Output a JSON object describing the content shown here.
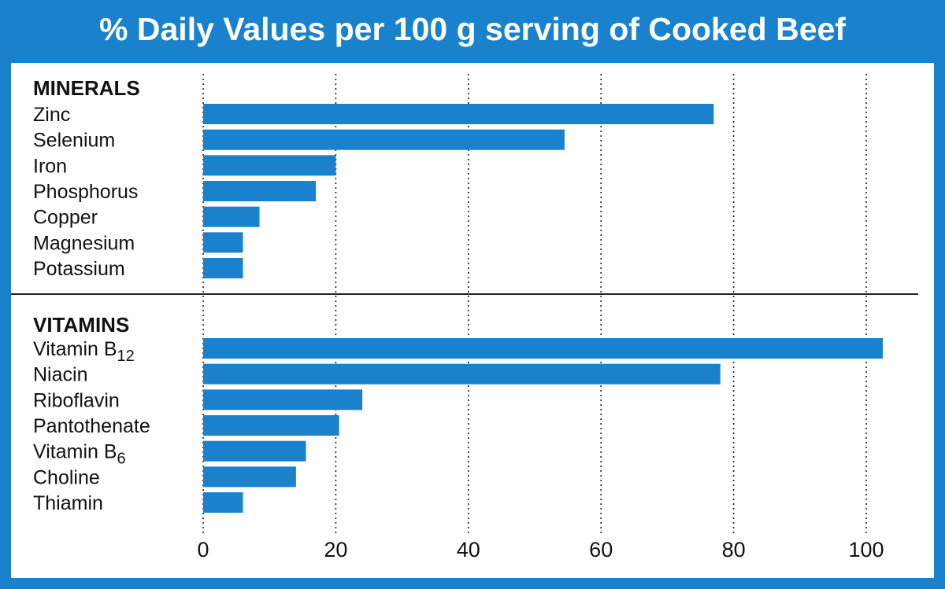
{
  "chart_data": {
    "type": "bar",
    "title": "% Daily Values per 100 g serving of Cooked Beef",
    "xlim": [
      0,
      100
    ],
    "x_ticks": [
      "0",
      "20",
      "40",
      "60",
      "80",
      "100"
    ],
    "grid": "vertical dotted",
    "bar_color": "#1a82cc",
    "groups": [
      {
        "heading": "MINERALS",
        "categories": [
          {
            "label": "Zinc",
            "sub": "",
            "value": 77
          },
          {
            "label": "Selenium",
            "sub": "",
            "value": 54.5
          },
          {
            "label": "Iron",
            "sub": "",
            "value": 20
          },
          {
            "label": "Phosphorus",
            "sub": "",
            "value": 17
          },
          {
            "label": "Copper",
            "sub": "",
            "value": 8.5
          },
          {
            "label": "Magnesium",
            "sub": "",
            "value": 6
          },
          {
            "label": "Potassium",
            "sub": "",
            "value": 6
          }
        ]
      },
      {
        "heading": "VITAMINS",
        "categories": [
          {
            "label": "Vitamin B",
            "sub": "12",
            "value": 102.5
          },
          {
            "label": "Niacin",
            "sub": "",
            "value": 78
          },
          {
            "label": "Riboflavin",
            "sub": "",
            "value": 24
          },
          {
            "label": "Pantothenate",
            "sub": "",
            "value": 20.5
          },
          {
            "label": "Vitamin B",
            "sub": "6",
            "value": 15.5
          },
          {
            "label": "Choline",
            "sub": "",
            "value": 14
          },
          {
            "label": "Thiamin",
            "sub": "",
            "value": 6
          }
        ]
      }
    ]
  }
}
